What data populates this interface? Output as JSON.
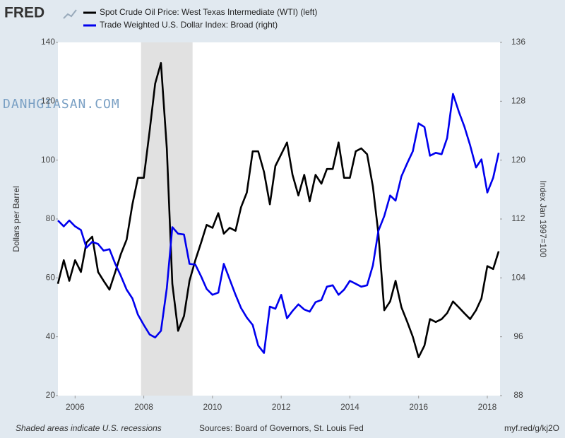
{
  "chart_data": {
    "type": "line",
    "logo": "FRED",
    "watermark": "DANHGIASAN.COM",
    "ylabel": "Dollars per Barrel",
    "y2label": "Index Jan 1997=100",
    "note": "Shaded areas indicate U.S. recessions",
    "source": "Sources: Board of Governors, St. Louis Fed",
    "link": "myf.red/g/kj2O",
    "x": [
      2005.5,
      2005.67,
      2005.83,
      2006,
      2006.17,
      2006.33,
      2006.5,
      2006.67,
      2006.83,
      2007,
      2007.17,
      2007.33,
      2007.5,
      2007.67,
      2007.83,
      2008,
      2008.17,
      2008.33,
      2008.5,
      2008.67,
      2008.83,
      2009,
      2009.17,
      2009.33,
      2009.5,
      2009.67,
      2009.83,
      2010,
      2010.17,
      2010.33,
      2010.5,
      2010.67,
      2010.83,
      2011,
      2011.17,
      2011.33,
      2011.5,
      2011.67,
      2011.83,
      2012,
      2012.17,
      2012.33,
      2012.5,
      2012.67,
      2012.83,
      2013,
      2013.17,
      2013.33,
      2013.5,
      2013.67,
      2013.83,
      2014,
      2014.17,
      2014.33,
      2014.5,
      2014.67,
      2014.83,
      2015,
      2015.17,
      2015.33,
      2015.5,
      2015.67,
      2015.83,
      2016,
      2016.17,
      2016.33,
      2016.5,
      2016.67,
      2016.83,
      2017,
      2017.17,
      2017.33,
      2017.5,
      2017.67,
      2017.83,
      2018,
      2018.17,
      2018.33
    ],
    "series": [
      {
        "name": "Spot Crude Oil Price: West Texas Intermediate (WTI) (left)",
        "color": "#000000",
        "axis": "y",
        "values": [
          58,
          66,
          59,
          66,
          62,
          72,
          74,
          62,
          59,
          56,
          62,
          68,
          73,
          85,
          94,
          94,
          110,
          126,
          133,
          104,
          58,
          42,
          47,
          59,
          66,
          72,
          78,
          77,
          82,
          75,
          77,
          76,
          84,
          89,
          103,
          103,
          96,
          85,
          98,
          102,
          106,
          95,
          88,
          95,
          86,
          95,
          92,
          97,
          97,
          106,
          94,
          94,
          103,
          104,
          102,
          91,
          75,
          49,
          52,
          59,
          50,
          45,
          40,
          33,
          37,
          46,
          45,
          46,
          48,
          52,
          50,
          48,
          46,
          49,
          53,
          64,
          63,
          69
        ]
      },
      {
        "name": "Trade Weighted U.S. Dollar Index: Broad (right)",
        "color": "#0000ee",
        "axis": "y2",
        "values": [
          111.8,
          111,
          111.8,
          111,
          110.5,
          108.1,
          108.9,
          108.6,
          107.7,
          107.9,
          105.9,
          104.3,
          102.4,
          101.2,
          99,
          97.6,
          96.3,
          95.9,
          96.8,
          102.6,
          110.9,
          110,
          109.9,
          105.9,
          105.8,
          104.2,
          102.5,
          101.7,
          102,
          105.9,
          103.8,
          101.7,
          99.9,
          98.6,
          97.6,
          94.8,
          93.8,
          100.1,
          99.8,
          101.7,
          98.5,
          99.5,
          100.4,
          99.7,
          99.4,
          100.7,
          101,
          102.8,
          103,
          101.7,
          102.4,
          103.6,
          103.2,
          102.8,
          103,
          105.7,
          110.4,
          112.4,
          115.2,
          114.5,
          117.8,
          119.6,
          121.2,
          125,
          124.5,
          120.6,
          121,
          120.8,
          123,
          129,
          126.6,
          124.6,
          122,
          119,
          120.1,
          115.6,
          117.6,
          121
        ]
      }
    ],
    "recessions": [
      [
        2007.92,
        2009.42
      ]
    ],
    "xlim": [
      2005.5,
      2018.37
    ],
    "xticks": [
      2006,
      2008,
      2010,
      2012,
      2014,
      2016,
      2018
    ],
    "ylim": [
      20,
      140
    ],
    "yticks": [
      20,
      40,
      60,
      80,
      100,
      120,
      140
    ],
    "y2lim": [
      88,
      136
    ],
    "y2ticks": [
      88,
      96,
      104,
      112,
      120,
      128,
      136
    ],
    "grid": false
  }
}
